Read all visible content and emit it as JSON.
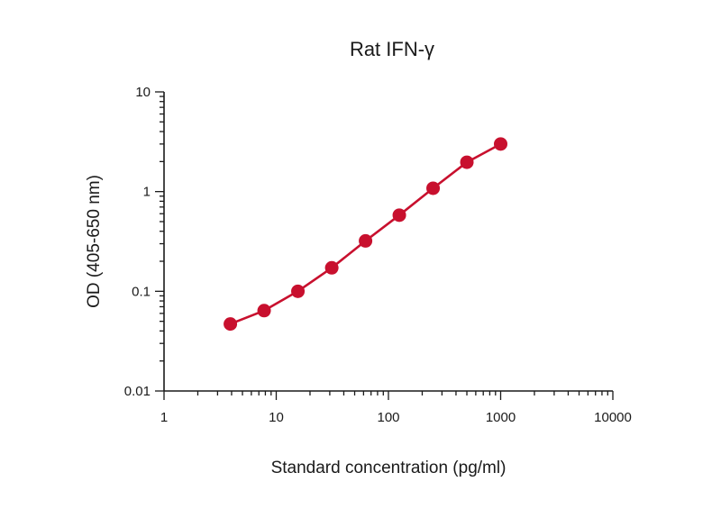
{
  "chart_data": {
    "type": "line",
    "title": "Rat IFN-γ",
    "xlabel": "Standard concentration (pg/ml)",
    "ylabel": "OD (405-650 nm)",
    "x_scale": "log",
    "y_scale": "log",
    "xlim": [
      1,
      10000
    ],
    "ylim": [
      0.01,
      10
    ],
    "x_ticks": [
      1,
      10,
      100,
      1000,
      10000
    ],
    "x_tick_labels": [
      "1",
      "10",
      "100",
      "1000",
      "10000"
    ],
    "y_ticks": [
      0.01,
      0.1,
      1,
      10
    ],
    "y_tick_labels": [
      "0.01",
      "0.1",
      "1",
      "10"
    ],
    "grid": false,
    "series": [
      {
        "color": "#c8102e",
        "x": [
          3.9,
          7.8,
          15.6,
          31.25,
          62.5,
          125,
          250,
          500,
          1000
        ],
        "y": [
          0.047,
          0.064,
          0.1,
          0.172,
          0.32,
          0.58,
          1.08,
          1.97,
          3.0
        ]
      }
    ]
  }
}
